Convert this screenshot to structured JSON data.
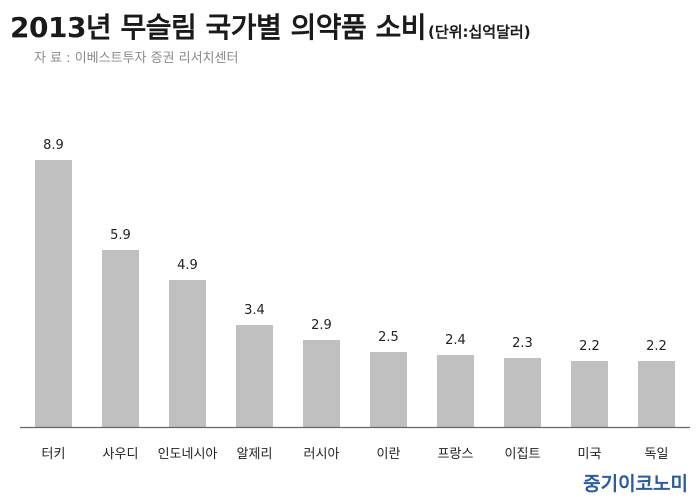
{
  "chart_data": {
    "type": "bar",
    "title": "2013년 무슬림 국가별 의약품 소비",
    "unit_note": "(단위:십억달러)",
    "source": "자 료 : 이베스트투자 증권 리서치센터",
    "categories": [
      "터키",
      "사우디",
      "인도네시아",
      "알제리",
      "러시아",
      "이란",
      "프랑스",
      "이집트",
      "미국",
      "독일"
    ],
    "values": [
      8.9,
      5.9,
      4.9,
      3.4,
      2.9,
      2.5,
      2.4,
      2.3,
      2.2,
      2.2
    ],
    "value_labels": [
      "8.9",
      "5.9",
      "4.9",
      "3.4",
      "2.9",
      "2.5",
      "2.4",
      "2.3",
      "2.2",
      "2.2"
    ],
    "ylim": [
      0,
      10
    ],
    "grid": false,
    "bar_color": "#c0c0c0",
    "axis_color": "#666666"
  },
  "brand": "중기이코노미"
}
